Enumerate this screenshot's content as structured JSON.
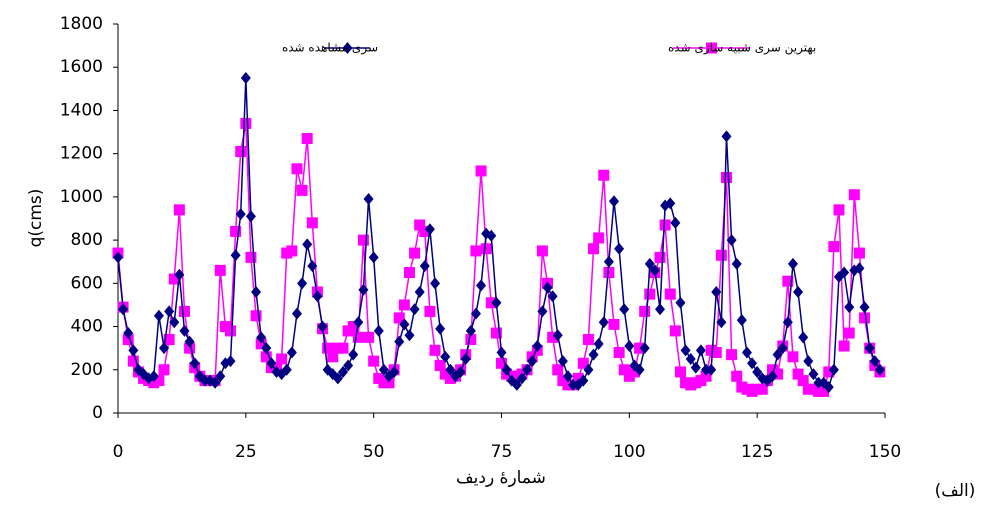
{
  "chart_data": {
    "type": "line",
    "y_label": "q(cms)",
    "x_label": "شمارهٔ ردیف",
    "annotation": "(الف)",
    "x": [
      0,
      1,
      2,
      3,
      4,
      5,
      6,
      7,
      8,
      9,
      10,
      11,
      12,
      13,
      14,
      15,
      16,
      17,
      18,
      19,
      20,
      21,
      22,
      23,
      24,
      25,
      26,
      27,
      28,
      29,
      30,
      31,
      32,
      33,
      34,
      35,
      36,
      37,
      38,
      39,
      40,
      41,
      42,
      43,
      44,
      45,
      46,
      47,
      48,
      49,
      50,
      51,
      52,
      53,
      54,
      55,
      56,
      57,
      58,
      59,
      60,
      61,
      62,
      63,
      64,
      65,
      66,
      67,
      68,
      69,
      70,
      71,
      72,
      73,
      74,
      75,
      76,
      77,
      78,
      79,
      80,
      81,
      82,
      83,
      84,
      85,
      86,
      87,
      88,
      89,
      90,
      91,
      92,
      93,
      94,
      95,
      96,
      97,
      98,
      99,
      100,
      101,
      102,
      103,
      104,
      105,
      106,
      107,
      108,
      109,
      110,
      111,
      112,
      113,
      114,
      115,
      116,
      117,
      118,
      119,
      120,
      121,
      122,
      123,
      124,
      125,
      126,
      127,
      128,
      129,
      130,
      131,
      132,
      133,
      134,
      135,
      136,
      137,
      138,
      139,
      140,
      141,
      142,
      143,
      144,
      145,
      146,
      147,
      148,
      149
    ],
    "series": [
      {
        "name": "بهترین سری شبیه سازی شده",
        "color": "#ff00ff",
        "marker": "square",
        "values": [
          740,
          490,
          340,
          240,
          190,
          160,
          150,
          140,
          150,
          200,
          340,
          620,
          940,
          470,
          300,
          210,
          170,
          150,
          150,
          150,
          660,
          400,
          380,
          840,
          1210,
          1340,
          720,
          450,
          320,
          260,
          210,
          210,
          250,
          740,
          750,
          1130,
          1030,
          1270,
          880,
          560,
          390,
          300,
          260,
          300,
          300,
          380,
          400,
          350,
          800,
          350,
          240,
          160,
          140,
          140,
          200,
          440,
          500,
          650,
          740,
          870,
          840,
          470,
          290,
          220,
          180,
          160,
          170,
          200,
          270,
          340,
          750,
          1120,
          760,
          510,
          370,
          230,
          180,
          170,
          170,
          180,
          200,
          260,
          290,
          750,
          600,
          350,
          200,
          150,
          130,
          130,
          160,
          230,
          340,
          760,
          810,
          1100,
          650,
          410,
          280,
          200,
          170,
          190,
          300,
          470,
          550,
          650,
          720,
          870,
          550,
          380,
          190,
          140,
          130,
          140,
          150,
          170,
          290,
          280,
          730,
          1090,
          270,
          170,
          120,
          110,
          100,
          110,
          110,
          150,
          200,
          180,
          310,
          610,
          260,
          180,
          150,
          110,
          110,
          100,
          100,
          190,
          770,
          940,
          310,
          370,
          1010,
          740,
          440,
          300,
          220,
          190
        ]
      },
      {
        "name": "سری مشاهده شده",
        "color": "#000080",
        "marker": "diamond",
        "values": [
          720,
          480,
          370,
          290,
          200,
          180,
          160,
          170,
          450,
          300,
          470,
          420,
          640,
          380,
          330,
          230,
          170,
          150,
          150,
          140,
          170,
          230,
          240,
          730,
          920,
          1550,
          910,
          560,
          350,
          300,
          230,
          190,
          180,
          200,
          280,
          460,
          600,
          780,
          680,
          540,
          400,
          200,
          180,
          160,
          190,
          220,
          270,
          420,
          570,
          990,
          720,
          380,
          200,
          170,
          190,
          330,
          410,
          360,
          480,
          560,
          680,
          850,
          600,
          390,
          260,
          200,
          170,
          190,
          250,
          380,
          460,
          590,
          830,
          820,
          510,
          280,
          200,
          150,
          130,
          160,
          200,
          240,
          310,
          470,
          580,
          540,
          360,
          240,
          170,
          130,
          130,
          150,
          200,
          270,
          320,
          420,
          700,
          980,
          760,
          480,
          310,
          220,
          200,
          300,
          690,
          660,
          480,
          960,
          970,
          880,
          510,
          290,
          250,
          210,
          290,
          200,
          200,
          560,
          420,
          1280,
          800,
          690,
          430,
          280,
          230,
          190,
          160,
          150,
          170,
          270,
          300,
          420,
          690,
          560,
          350,
          240,
          180,
          140,
          140,
          120,
          200,
          630,
          650,
          490,
          660,
          670,
          490,
          300,
          240,
          200
        ]
      }
    ],
    "xlim": [
      0,
      150
    ],
    "xticks": [
      0,
      25,
      50,
      75,
      100,
      125,
      150
    ],
    "ylim": [
      0,
      1800
    ],
    "yticks": [
      0,
      200,
      400,
      600,
      800,
      1000,
      1200,
      1400,
      1600,
      1800
    ],
    "grid": false
  }
}
